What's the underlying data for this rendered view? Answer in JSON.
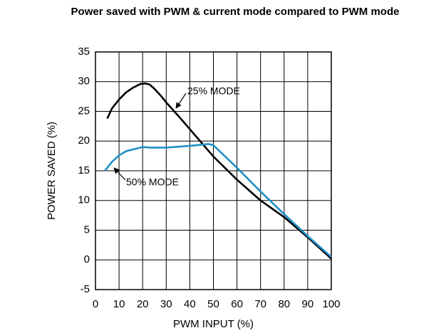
{
  "chart_data": {
    "type": "line",
    "title": "Power saved with PWM & current mode compared to PWM mode",
    "xlabel": "PWM INPUT (%)",
    "ylabel": "POWER SAVED (%)",
    "xlim": [
      0,
      100
    ],
    "xticks": [
      0,
      10,
      20,
      30,
      40,
      50,
      60,
      70,
      80,
      90,
      100
    ],
    "ylim": [
      -5,
      35
    ],
    "yticks": [
      -5,
      0,
      5,
      10,
      15,
      20,
      25,
      30,
      35
    ],
    "grid": true,
    "annotations": [
      "25% MODE",
      "50% MODE"
    ],
    "series": [
      {
        "name": "25% MODE",
        "color": "#000000",
        "x": [
          5,
          7,
          10,
          13,
          16,
          19,
          21,
          23,
          25,
          28,
          30,
          35,
          40,
          45,
          50,
          60,
          70,
          80,
          90,
          100
        ],
        "values": [
          23.8,
          25.5,
          27,
          28.2,
          29,
          29.6,
          29.7,
          29.5,
          28.8,
          27.5,
          26.5,
          24.3,
          22,
          19.7,
          17.4,
          13.5,
          10,
          7.2,
          3.8,
          0.2
        ]
      },
      {
        "name": "50% MODE",
        "color": "#1e8fc6",
        "x": [
          4,
          7,
          10,
          13,
          17,
          20,
          23,
          30,
          40,
          48,
          50,
          60,
          70,
          80,
          90,
          100
        ],
        "values": [
          15,
          16.5,
          17.6,
          18.3,
          18.7,
          19,
          18.9,
          18.9,
          19.2,
          19.5,
          19.3,
          15.5,
          11.5,
          7.7,
          4,
          0.5
        ]
      }
    ]
  }
}
